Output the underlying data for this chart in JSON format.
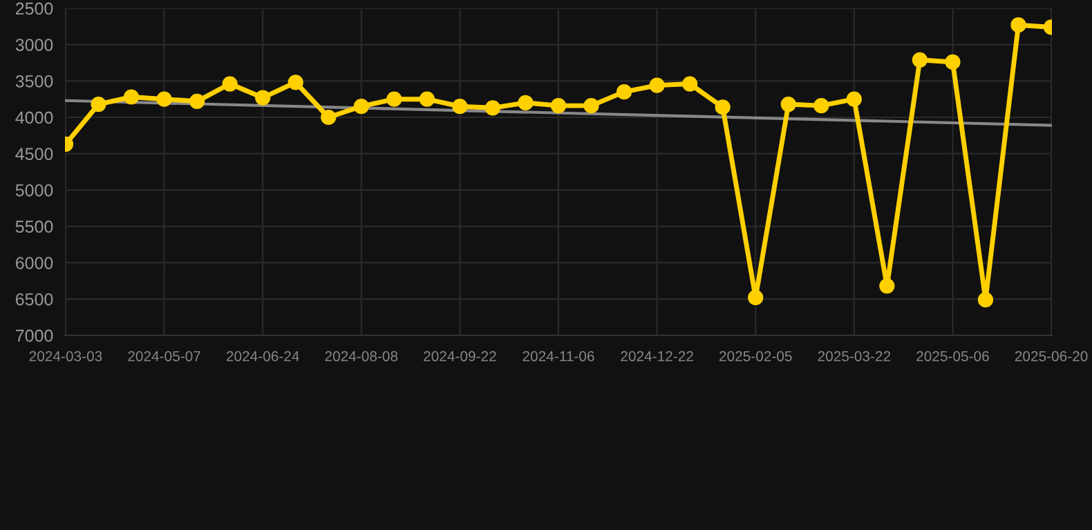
{
  "chart_data": {
    "type": "line",
    "categories": [
      "2024-03-03",
      null,
      null,
      "2024-05-07",
      null,
      null,
      "2024-06-24",
      null,
      null,
      "2024-08-08",
      null,
      null,
      "2024-09-22",
      null,
      null,
      "2024-11-06",
      null,
      null,
      "2024-12-22",
      null,
      null,
      "2025-02-05",
      null,
      null,
      "2025-03-22",
      null,
      null,
      "2025-05-06",
      null,
      null,
      "2025-06-20"
    ],
    "series": [
      {
        "color": "#ffd000",
        "marker": "circle",
        "values": [
          4370,
          3820,
          3720,
          3750,
          3780,
          3540,
          3730,
          3520,
          4000,
          3850,
          3750,
          3750,
          3850,
          3870,
          3800,
          3840,
          3840,
          3650,
          3560,
          3540,
          3860,
          6480,
          3820,
          3840,
          3750,
          6320,
          3210,
          3240,
          6510,
          2730,
          2760
        ]
      },
      {
        "color": "#888888",
        "marker": "none",
        "values": [
          3770,
          null,
          null,
          null,
          null,
          null,
          null,
          null,
          null,
          null,
          null,
          null,
          null,
          null,
          null,
          null,
          null,
          null,
          null,
          null,
          null,
          null,
          null,
          null,
          null,
          null,
          null,
          null,
          null,
          null,
          4110
        ]
      }
    ],
    "ylim": [
      7000,
      2500
    ],
    "yticks": [
      2500,
      3000,
      3500,
      4000,
      4500,
      5000,
      5500,
      6000,
      6500,
      7000
    ],
    "grid": true
  }
}
